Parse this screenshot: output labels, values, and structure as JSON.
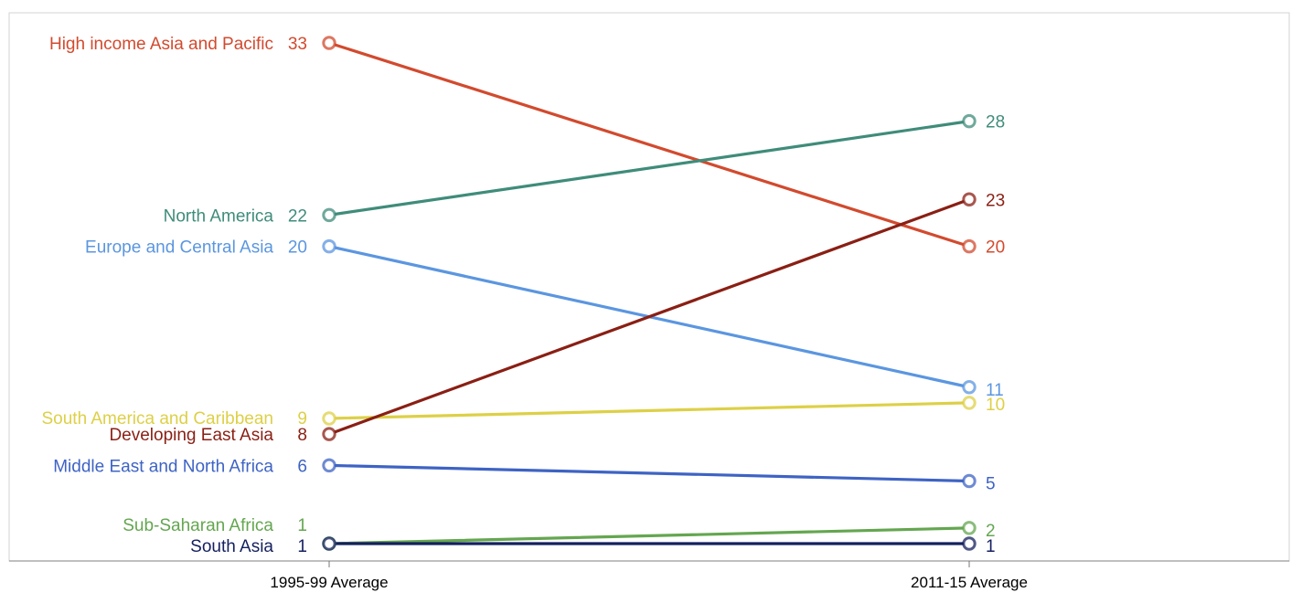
{
  "chart_data": {
    "type": "slope",
    "categories": [
      "1995-99 Average",
      "2011-15 Average"
    ],
    "ylim": [
      0,
      34
    ],
    "grid": false,
    "series": [
      {
        "name": "High income Asia and Pacific",
        "values": [
          33,
          20
        ],
        "color": "#d24a2e"
      },
      {
        "name": "North America",
        "values": [
          22,
          28
        ],
        "color": "#3f8c7a"
      },
      {
        "name": "Europe and Central Asia",
        "values": [
          20,
          11
        ],
        "color": "#5b96e0"
      },
      {
        "name": "South America and Caribbean",
        "values": [
          9,
          10
        ],
        "color": "#ddd047"
      },
      {
        "name": "Developing East Asia",
        "values": [
          8,
          23
        ],
        "color": "#8a1f14"
      },
      {
        "name": "Middle East and North Africa",
        "values": [
          6,
          5
        ],
        "color": "#3e63c4"
      },
      {
        "name": "Sub-Saharan Africa",
        "values": [
          1,
          2
        ],
        "color": "#64a650"
      },
      {
        "name": "South Asia",
        "values": [
          1,
          1
        ],
        "color": "#14205e"
      }
    ]
  }
}
